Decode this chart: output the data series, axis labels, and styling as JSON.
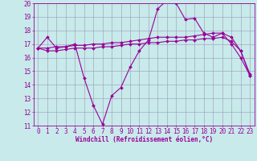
{
  "xlabel": "Windchill (Refroidissement éolien,°C)",
  "background_color": "#c8eaea",
  "line_color": "#990099",
  "grid_color": "#9999bb",
  "xlim_min": -0.5,
  "xlim_max": 23.5,
  "ylim_min": 11,
  "ylim_max": 20,
  "yticks": [
    11,
    12,
    13,
    14,
    15,
    16,
    17,
    18,
    19,
    20
  ],
  "xticks": [
    0,
    1,
    2,
    3,
    4,
    5,
    6,
    7,
    8,
    9,
    10,
    11,
    12,
    13,
    14,
    15,
    16,
    17,
    18,
    19,
    20,
    21,
    22,
    23
  ],
  "series0": [
    16.7,
    17.5,
    16.7,
    16.8,
    17.0,
    14.5,
    12.5,
    11.1,
    13.2,
    13.8,
    15.3,
    16.5,
    17.3,
    19.6,
    20.2,
    20.0,
    18.8,
    18.9,
    17.8,
    17.5,
    17.8,
    17.0,
    16.0,
    14.7
  ],
  "series1": [
    16.7,
    16.7,
    16.8,
    16.8,
    16.9,
    16.9,
    17.0,
    17.0,
    17.1,
    17.1,
    17.2,
    17.3,
    17.4,
    17.5,
    17.5,
    17.5,
    17.5,
    17.6,
    17.7,
    17.8,
    17.8,
    17.5,
    16.5,
    14.8
  ],
  "series2": [
    16.7,
    16.5,
    16.5,
    16.6,
    16.7,
    16.7,
    16.7,
    16.8,
    16.8,
    16.9,
    17.0,
    17.0,
    17.1,
    17.1,
    17.2,
    17.2,
    17.3,
    17.3,
    17.4,
    17.4,
    17.5,
    17.2,
    16.5,
    14.7
  ],
  "tick_fontsize": 5.5,
  "xlabel_fontsize": 5.5
}
